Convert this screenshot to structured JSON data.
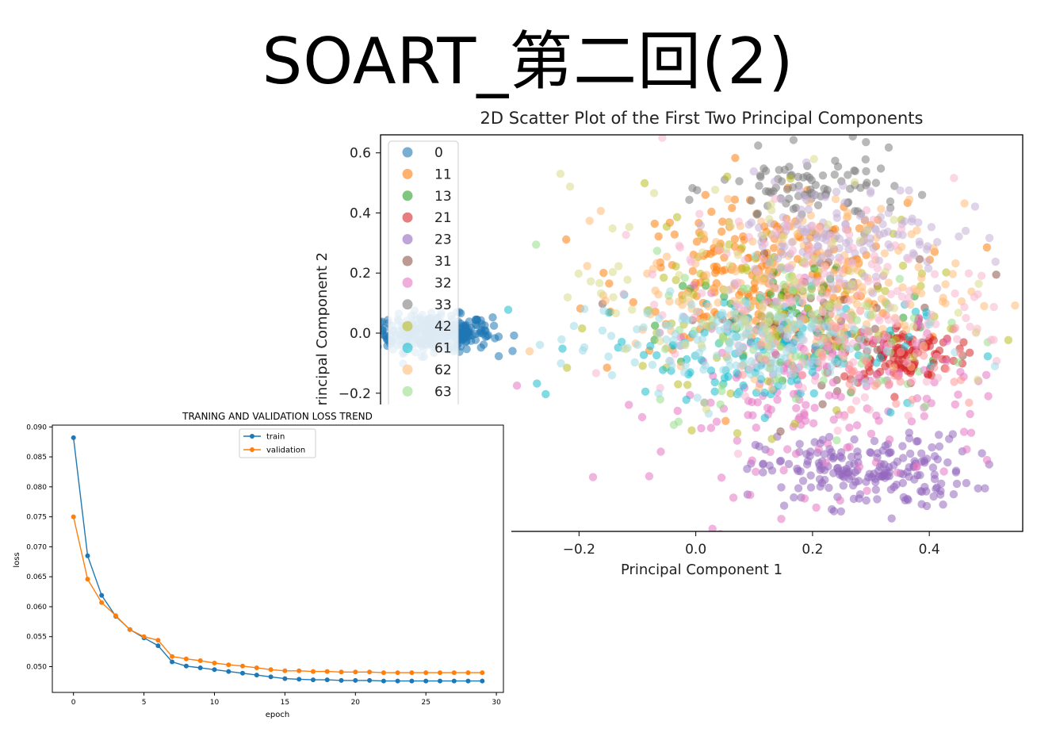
{
  "slide": {
    "title": "SOART_第二回(2)"
  },
  "chart_data": [
    {
      "type": "scatter",
      "title": "2D Scatter Plot of the First Two Principal Components",
      "xlabel": "Principal Component 1",
      "ylabel": "Principal Component 2",
      "xlim": [
        -0.54,
        0.56
      ],
      "ylim": [
        -0.66,
        0.66
      ],
      "x_ticks": [
        "-0.2",
        "0.0",
        "0.2",
        "0.4"
      ],
      "y_ticks": [
        "0.6",
        "0.4",
        "0.2",
        "0.0",
        "-0.2"
      ],
      "legend": {
        "placement": "upper-left",
        "visible_entries": [
          "0",
          "11",
          "13",
          "21",
          "23",
          "31",
          "32",
          "33",
          "42",
          "61",
          "62",
          "63"
        ]
      },
      "grid": false,
      "series": [
        {
          "name": "0",
          "color": "#1f77b4",
          "center": [
            -0.45,
            0.0
          ],
          "spread": [
            0.05,
            0.03
          ],
          "n": 360
        },
        {
          "name": "11",
          "color": "#ff7f0e",
          "center": [
            0.12,
            0.19
          ],
          "spread": [
            0.12,
            0.12
          ],
          "n": 220
        },
        {
          "name": "13",
          "color": "#2ca02c",
          "center": [
            0.18,
            0.02
          ],
          "spread": [
            0.12,
            0.12
          ],
          "n": 60
        },
        {
          "name": "21",
          "color": "#d62728",
          "center": [
            0.35,
            -0.07
          ],
          "spread": [
            0.05,
            0.05
          ],
          "n": 120
        },
        {
          "name": "23",
          "color": "#9467bd",
          "center": [
            0.29,
            -0.46
          ],
          "spread": [
            0.09,
            0.06
          ],
          "n": 200
        },
        {
          "name": "31",
          "color": "#8c564b",
          "center": [
            0.2,
            0.05
          ],
          "spread": [
            0.12,
            0.12
          ],
          "n": 50
        },
        {
          "name": "32",
          "color": "#e377c2",
          "center": [
            0.22,
            -0.2
          ],
          "spread": [
            0.14,
            0.16
          ],
          "n": 200
        },
        {
          "name": "33",
          "color": "#7f7f7f",
          "center": [
            0.2,
            0.48
          ],
          "spread": [
            0.08,
            0.06
          ],
          "n": 90
        },
        {
          "name": "42",
          "color": "#bcbd22",
          "center": [
            0.12,
            0.05
          ],
          "spread": [
            0.14,
            0.18
          ],
          "n": 100
        },
        {
          "name": "61",
          "color": "#17becf",
          "center": [
            0.1,
            -0.05
          ],
          "spread": [
            0.14,
            0.1
          ],
          "n": 120
        },
        {
          "name": "62",
          "color": "#ffbb78",
          "center": [
            0.18,
            0.15
          ],
          "spread": [
            0.14,
            0.14
          ],
          "n": 200
        },
        {
          "name": "63",
          "color": "#98df8a",
          "center": [
            0.2,
            0.0
          ],
          "spread": [
            0.14,
            0.14
          ],
          "n": 90
        },
        {
          "name": "",
          "color": "#c5b0d5",
          "center": [
            0.24,
            0.32
          ],
          "spread": [
            0.1,
            0.1
          ],
          "n": 150
        },
        {
          "name": "",
          "color": "#f7b6d2",
          "center": [
            0.22,
            0.08
          ],
          "spread": [
            0.14,
            0.16
          ],
          "n": 180
        },
        {
          "name": "",
          "color": "#9edae5",
          "center": [
            0.05,
            -0.03
          ],
          "spread": [
            0.14,
            0.08
          ],
          "n": 160
        },
        {
          "name": "",
          "color": "#dbdb8d",
          "center": [
            0.1,
            0.15
          ],
          "spread": [
            0.16,
            0.18
          ],
          "n": 80
        },
        {
          "name": "",
          "color": "#ff9896",
          "center": [
            0.3,
            -0.1
          ],
          "spread": [
            0.1,
            0.08
          ],
          "n": 40
        }
      ]
    },
    {
      "type": "line",
      "title": "TRANING AND VALIDATION LOSS TREND",
      "xlabel": "epoch",
      "ylabel": "loss",
      "xlim": [
        -1.5,
        30.5
      ],
      "ylim": [
        0.0457,
        0.0903
      ],
      "x_ticks": [
        0,
        5,
        10,
        15,
        20,
        25,
        30
      ],
      "y_ticks": [
        "0.090",
        "0.085",
        "0.080",
        "0.075",
        "0.070",
        "0.065",
        "0.060",
        "0.055",
        "0.050"
      ],
      "legend": {
        "placement": "upper-center"
      },
      "grid": false,
      "x": [
        0,
        1,
        2,
        3,
        4,
        5,
        6,
        7,
        8,
        9,
        10,
        11,
        12,
        13,
        14,
        15,
        16,
        17,
        18,
        19,
        20,
        21,
        22,
        23,
        24,
        25,
        26,
        27,
        28,
        29
      ],
      "series": [
        {
          "name": "train",
          "color": "#1f77b4",
          "values": [
            0.0882,
            0.0685,
            0.0619,
            0.0584,
            0.0562,
            0.0548,
            0.0535,
            0.0508,
            0.0501,
            0.0498,
            0.0495,
            0.0492,
            0.0489,
            0.0486,
            0.0483,
            0.048,
            0.0479,
            0.0478,
            0.0478,
            0.0477,
            0.0477,
            0.0477,
            0.0476,
            0.0476,
            0.0476,
            0.0476,
            0.0476,
            0.0476,
            0.0476,
            0.0476
          ]
        },
        {
          "name": "validation",
          "color": "#ff7f0e",
          "values": [
            0.075,
            0.0646,
            0.0607,
            0.0585,
            0.0562,
            0.055,
            0.0544,
            0.0517,
            0.0513,
            0.051,
            0.0506,
            0.0503,
            0.0501,
            0.0498,
            0.0495,
            0.0493,
            0.0493,
            0.0492,
            0.0492,
            0.0491,
            0.0491,
            0.0491,
            0.049,
            0.049,
            0.049,
            0.049,
            0.049,
            0.049,
            0.049,
            0.049
          ]
        }
      ]
    }
  ]
}
